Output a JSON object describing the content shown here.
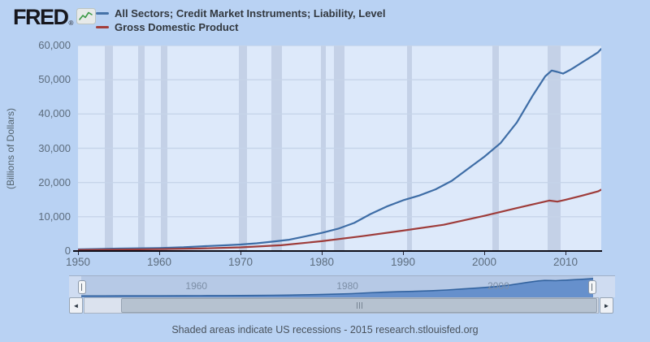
{
  "header": {
    "logo_text": "FRED",
    "logo_reg": "®",
    "logo_icon": "line-chart-icon"
  },
  "legend": {
    "items": [
      {
        "label": "All Sectors; Credit Market Instruments; Liability, Level",
        "color": "#4572a7"
      },
      {
        "label": "Gross Domestic Product",
        "color": "#a33e3b"
      }
    ]
  },
  "chart_data": {
    "type": "line",
    "title": "",
    "xlabel": "",
    "ylabel": "(Billions of Dollars)",
    "xlim": [
      1950,
      2014.4
    ],
    "ylim": [
      0,
      60000
    ],
    "grid": true,
    "legend_position": "top-left",
    "x_ticks": [
      {
        "v": 1950,
        "label": "1950"
      },
      {
        "v": 1960,
        "label": "1960"
      },
      {
        "v": 1970,
        "label": "1970"
      },
      {
        "v": 1980,
        "label": "1980"
      },
      {
        "v": 1990,
        "label": "1990"
      },
      {
        "v": 2000,
        "label": "2000"
      },
      {
        "v": 2010,
        "label": "2010"
      }
    ],
    "y_ticks": [
      {
        "v": 0,
        "label": "0"
      },
      {
        "v": 10000,
        "label": "10,000"
      },
      {
        "v": 20000,
        "label": "20,000"
      },
      {
        "v": 30000,
        "label": "30,000"
      },
      {
        "v": 40000,
        "label": "40,000"
      },
      {
        "v": 50000,
        "label": "50,000"
      },
      {
        "v": 60000,
        "label": "60,000"
      }
    ],
    "series": [
      {
        "name": "All Sectors; Credit Market Instruments; Liability, Level",
        "color": "#3e6da6",
        "x": [
          1950,
          1952,
          1955,
          1958,
          1960,
          1963,
          1965,
          1968,
          1970,
          1972,
          1974,
          1976,
          1978,
          1980,
          1982,
          1984,
          1986,
          1988,
          1990,
          1992,
          1994,
          1996,
          1998,
          2000,
          2002,
          2004,
          2006,
          2007.5,
          2008.3,
          2009,
          2009.7,
          2010.5,
          2011,
          2012,
          2013,
          2014,
          2014.4
        ],
        "values": [
          486,
          560,
          700,
          800,
          880,
          1100,
          1350,
          1650,
          1900,
          2250,
          2750,
          3300,
          4300,
          5300,
          6500,
          8200,
          10800,
          13000,
          14800,
          16200,
          18000,
          20500,
          24000,
          27500,
          31500,
          37500,
          45500,
          51000,
          52700,
          52300,
          51800,
          52800,
          53500,
          55000,
          56500,
          58000,
          59000
        ]
      },
      {
        "name": "Gross Domestic Product",
        "color": "#9e3c3a",
        "x": [
          1950,
          1955,
          1960,
          1965,
          1970,
          1975,
          1980,
          1985,
          1990,
          1995,
          2000,
          2005,
          2008,
          2009,
          2010,
          2012,
          2014,
          2014.4
        ],
        "values": [
          300,
          425,
          540,
          740,
          1075,
          1690,
          2860,
          4350,
          5960,
          7660,
          10280,
          13090,
          14720,
          14420,
          14960,
          16160,
          17400,
          17900
        ]
      }
    ],
    "recessions": [
      [
        1953.3,
        1954.3
      ],
      [
        1957.4,
        1958.2
      ],
      [
        1960.2,
        1961.0
      ],
      [
        1969.8,
        1970.8
      ],
      [
        1973.8,
        1975.1
      ],
      [
        1979.9,
        1980.5
      ],
      [
        1981.5,
        1982.8
      ],
      [
        1990.5,
        1991.1
      ],
      [
        2001.0,
        2001.8
      ],
      [
        2007.8,
        2009.4
      ]
    ],
    "recession_note": "Shaded areas indicate US recessions"
  },
  "navigator": {
    "labels": [
      {
        "text": "1960",
        "pct": 22.5
      },
      {
        "text": "1980",
        "pct": 52
      },
      {
        "text": "2000",
        "pct": 81.5
      }
    ]
  },
  "scrollbar": {
    "left_arrow": "◄",
    "right_arrow": "►"
  },
  "footer": {
    "text": "Shaded areas indicate US recessions - 2015 research.stlouisfed.org"
  },
  "colors": {
    "page_bg": "#b9d2f3",
    "plot_bg": "#dde9fa",
    "grid": "#c6d4e9",
    "recession": "#c4d1e7",
    "axis": "#0d0d17",
    "nav_fill": "#5d8ac9",
    "nav_line": "#33639f",
    "nav_bg": "#b6c9e6"
  }
}
